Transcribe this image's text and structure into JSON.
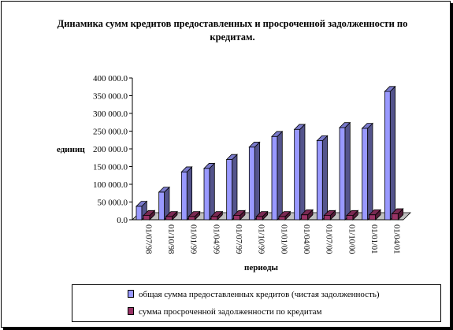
{
  "chart_data": {
    "type": "bar",
    "title_lines": [
      "Динамика сумм кредитов предоставленных и просроченной задолженности по",
      "кредитам."
    ],
    "xlabel": "периоды",
    "ylabel": "единиц",
    "categories": [
      "01/07/98",
      "01/10/98",
      "01/01/99",
      "01/04/99",
      "01/07/99",
      "01/10/99",
      "01/01/00",
      "01/04/00",
      "01/07/00",
      "01/10/00",
      "01/01/01",
      "01/04/01"
    ],
    "ylim": [
      0,
      400000
    ],
    "yticks": [
      "0.0",
      "50 000.0",
      "100 000.0",
      "150 000.0",
      "200 000.0",
      "250 000.0",
      "300 000.0",
      "350 000.0",
      "400 000.0"
    ],
    "series": [
      {
        "name": "общая сумма предоставленных кредитов (чистая задолженность)",
        "color": "#9999ff",
        "values": [
          38000,
          78000,
          135000,
          145000,
          170000,
          205000,
          235000,
          255000,
          223000,
          260000,
          258000,
          362000
        ]
      },
      {
        "name": "сумма просроченной задолженности по кредитам",
        "color": "#993366",
        "values": [
          12000,
          9000,
          9000,
          9000,
          12000,
          9000,
          9000,
          14000,
          12000,
          12000,
          14000,
          17000
        ]
      }
    ],
    "style": "3d-column",
    "legend_position": "bottom",
    "grid": false
  }
}
